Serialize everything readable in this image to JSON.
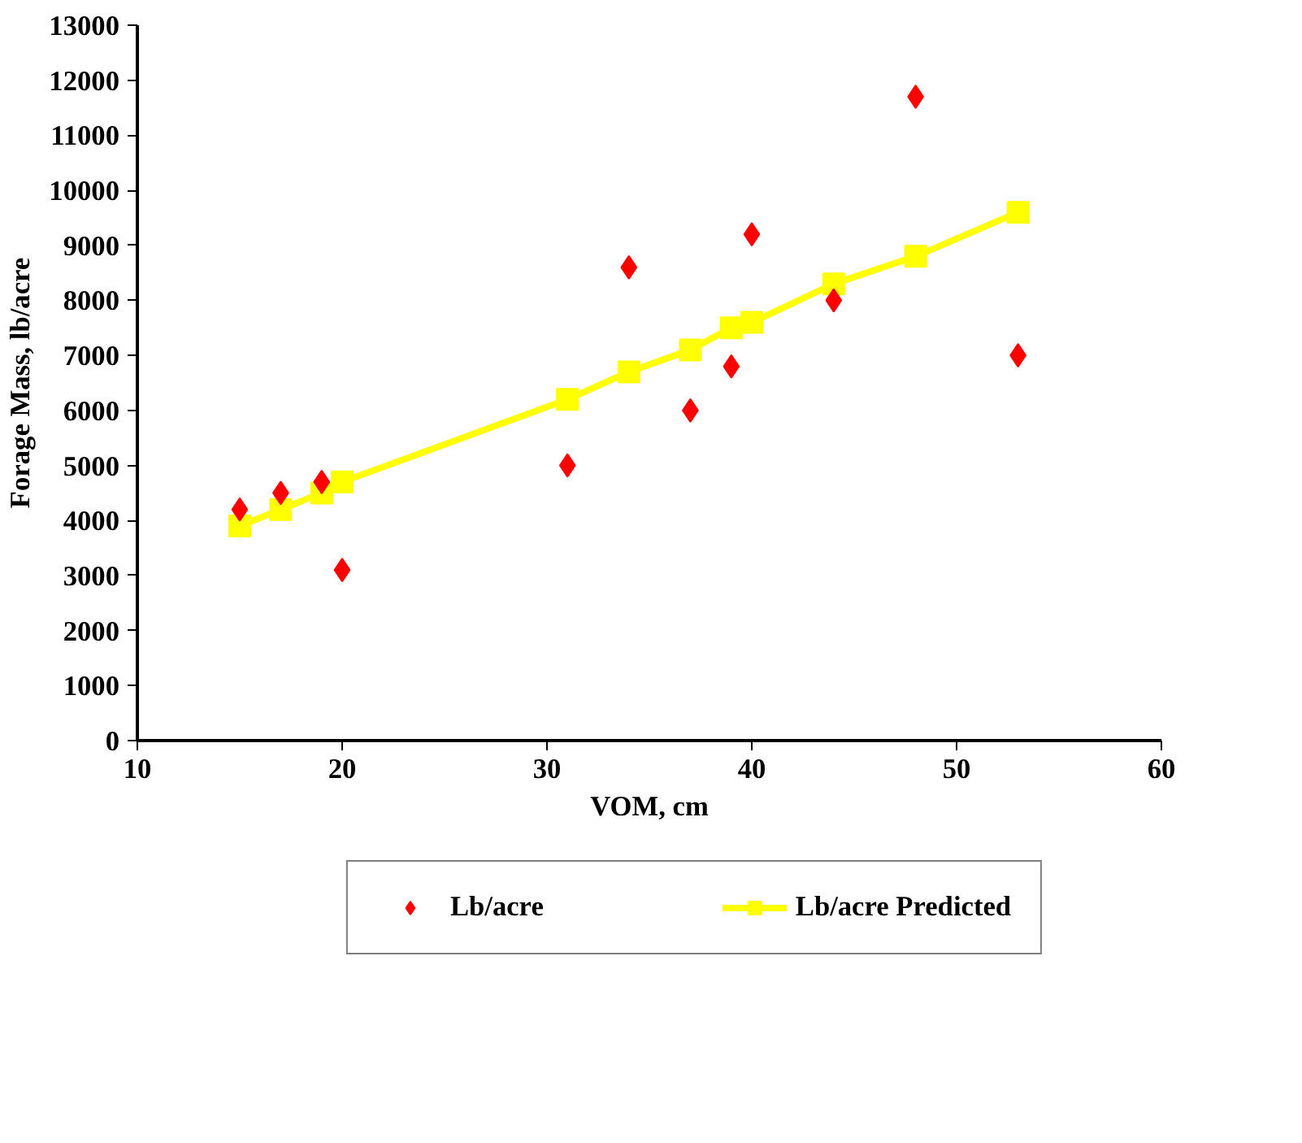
{
  "chart_data": {
    "type": "scatter",
    "xlabel": "VOM, cm",
    "ylabel": "Forage Mass, lb/acre",
    "xlim": [
      10,
      60
    ],
    "xticks": [
      10,
      20,
      30,
      40,
      50,
      60
    ],
    "ylim": [
      0,
      13000
    ],
    "yticks": [
      0,
      1000,
      2000,
      3000,
      4000,
      5000,
      6000,
      7000,
      8000,
      9000,
      10000,
      11000,
      12000,
      13000
    ],
    "grid": false,
    "legend": "bottom",
    "series": [
      {
        "name": "Lb/acre",
        "marker": "diamond",
        "color": "#ff0000",
        "x": [
          15,
          17,
          19,
          20,
          31,
          34,
          37,
          39,
          40,
          44,
          48,
          53
        ],
        "values": [
          4200,
          4500,
          4700,
          3100,
          5000,
          8600,
          6000,
          6800,
          9200,
          8000,
          11700,
          7000
        ]
      },
      {
        "name": "Lb/acre Predicted",
        "type": "line",
        "marker": "square",
        "color": "#ffff00",
        "x": [
          15,
          17,
          19,
          20,
          31,
          34,
          37,
          39,
          40,
          44,
          48,
          53
        ],
        "values": [
          3900,
          4200,
          4500,
          4700,
          6200,
          6700,
          7100,
          7500,
          7600,
          8300,
          8800,
          9600
        ]
      }
    ]
  }
}
